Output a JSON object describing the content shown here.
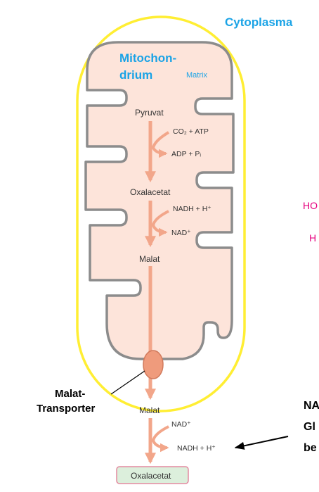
{
  "labels": {
    "cytoplasma": "Cytoplasma",
    "mito_line1": "Mitochon-",
    "mito_line2": "drium",
    "matrix": "Matrix",
    "pyruvat": "Pyruvat",
    "co2_atp": "CO₂ + ATP",
    "adp_pi": "ADP + Pᵢ",
    "oxalacetat_inner": "Oxalacetat",
    "nadh_h_inner": "NADH + H⁺",
    "nad_inner": "NAD⁺",
    "malat_inner": "Malat",
    "transporter_line1": "Malat-",
    "transporter_line2": "Transporter",
    "malat_outer": "Malat",
    "nad_outer": "NAD⁺",
    "nadh_h_outer": "NADH + H⁺",
    "oxalacetat_outer": "Oxalacetat",
    "cut_pink_1": "HO",
    "cut_pink_2": "H",
    "cut_black_1": "NA",
    "cut_black_2": "Gl",
    "cut_black_3": "be"
  },
  "colors": {
    "outer_membrane": "#ffee33",
    "inner_membrane": "#8c8c8c",
    "matrix_fill": "#fde4da",
    "arrow": "#f2a68a",
    "title_blue": "#1aa3e6",
    "box_fill": "#dcefdc",
    "box_border": "#e38aa0"
  }
}
